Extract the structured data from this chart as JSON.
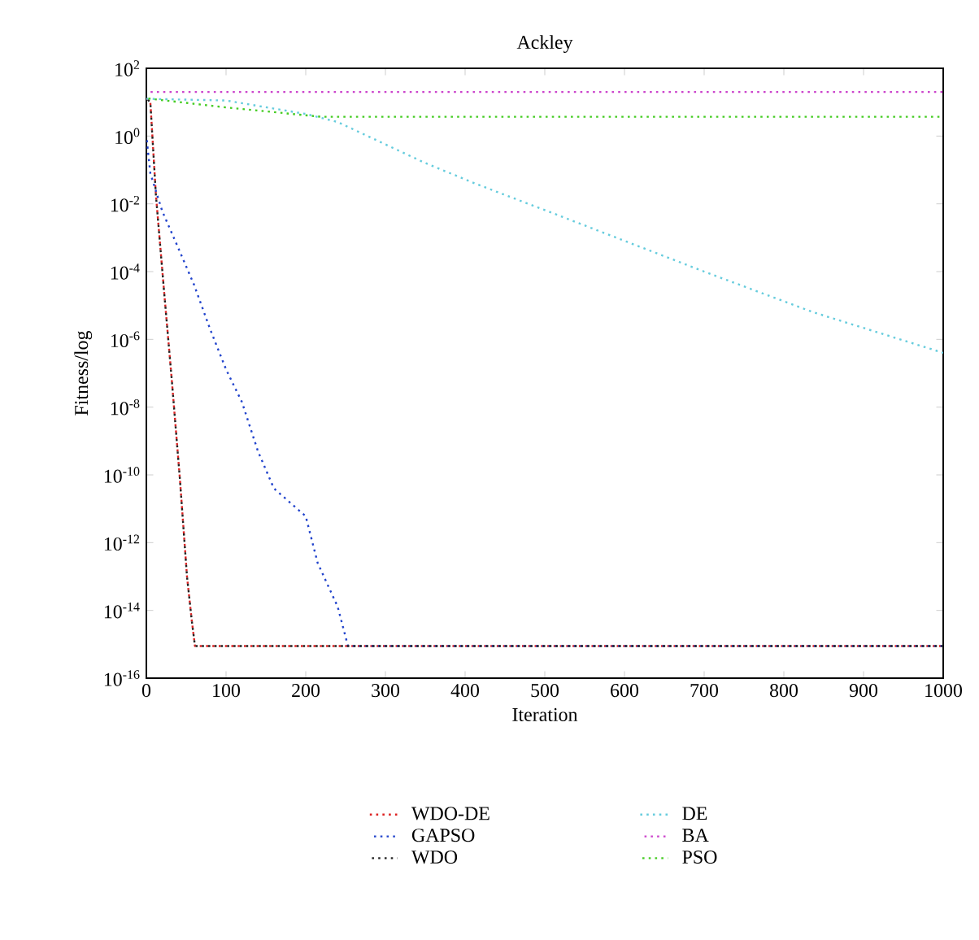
{
  "chart_data": {
    "type": "line",
    "title": "Ackley",
    "xlabel": "Iteration",
    "ylabel": "Fitness/log",
    "log": "y",
    "grid": false,
    "legend": "bottom",
    "marker": "none",
    "line_style": "dotted",
    "xlim": [
      0,
      1000
    ],
    "ylim": [
      1e-16,
      100
    ],
    "xticks": [
      0,
      100,
      200,
      300,
      400,
      500,
      600,
      700,
      800,
      900,
      1000
    ],
    "yticks": [
      {
        "value": 1e-16,
        "label": "10$^{-16}$"
      },
      {
        "value": 1e-14,
        "label": "10$^{-14}$"
      },
      {
        "value": 1e-12,
        "label": "10$^{-12}$"
      },
      {
        "value": 1e-10,
        "label": "10$^{-10}$"
      },
      {
        "value": 1e-08,
        "label": "10$^{-8}$"
      },
      {
        "value": 1e-06,
        "label": "10$^{-6}$"
      },
      {
        "value": 0.0001,
        "label": "10$^{-4}$"
      },
      {
        "value": 0.01,
        "label": "10$^{-2}$"
      },
      {
        "value": 1,
        "label": "10$^{0}$"
      },
      {
        "value": 100,
        "label": "10$^{2}$"
      }
    ],
    "series": [
      {
        "name": "WDO-DE",
        "color": "#dd2222",
        "x": [
          0,
          5,
          12,
          22,
          32,
          42,
          51,
          57,
          61,
          1000
        ],
        "values": [
          13,
          10,
          0.018,
          3e-05,
          6e-08,
          8e-11,
          1e-13,
          5e-15,
          8.88e-16,
          8.88e-16
        ]
      },
      {
        "name": "GAPSO",
        "color": "#2244cc",
        "x": [
          0,
          5,
          20,
          40,
          60,
          80,
          100,
          120,
          140,
          160,
          200,
          215,
          240,
          253,
          1000
        ],
        "values": [
          1,
          0.08,
          0.006,
          0.0005,
          4e-05,
          2e-06,
          1.3e-07,
          1.4e-08,
          5e-10,
          4e-11,
          6e-12,
          2.5e-13,
          1.3e-14,
          8.88e-16,
          8.88e-16
        ]
      },
      {
        "name": "WDO",
        "color": "#222222",
        "x": [
          0,
          5,
          12,
          22,
          32,
          42,
          51,
          57,
          61,
          1000
        ],
        "values": [
          13,
          10,
          0.018,
          3e-05,
          6e-08,
          8e-11,
          1e-13,
          5e-15,
          8.88e-16,
          8.88e-16
        ]
      },
      {
        "name": "DE",
        "color": "#66ccdd",
        "x": [
          0,
          100,
          200,
          240,
          350,
          416,
          505,
          700,
          837,
          1000
        ],
        "values": [
          12.6,
          11.2,
          4.5,
          2.6,
          0.16,
          0.037,
          0.0059,
          0.0001,
          6.3e-06,
          4e-07
        ]
      },
      {
        "name": "BA",
        "color": "#cc44cc",
        "x": [
          0,
          1000
        ],
        "values": [
          20,
          20
        ]
      },
      {
        "name": "PSO",
        "color": "#44cc22",
        "x": [
          0,
          100,
          220,
          1000
        ],
        "values": [
          13,
          7,
          3.7,
          3.7
        ]
      }
    ]
  }
}
